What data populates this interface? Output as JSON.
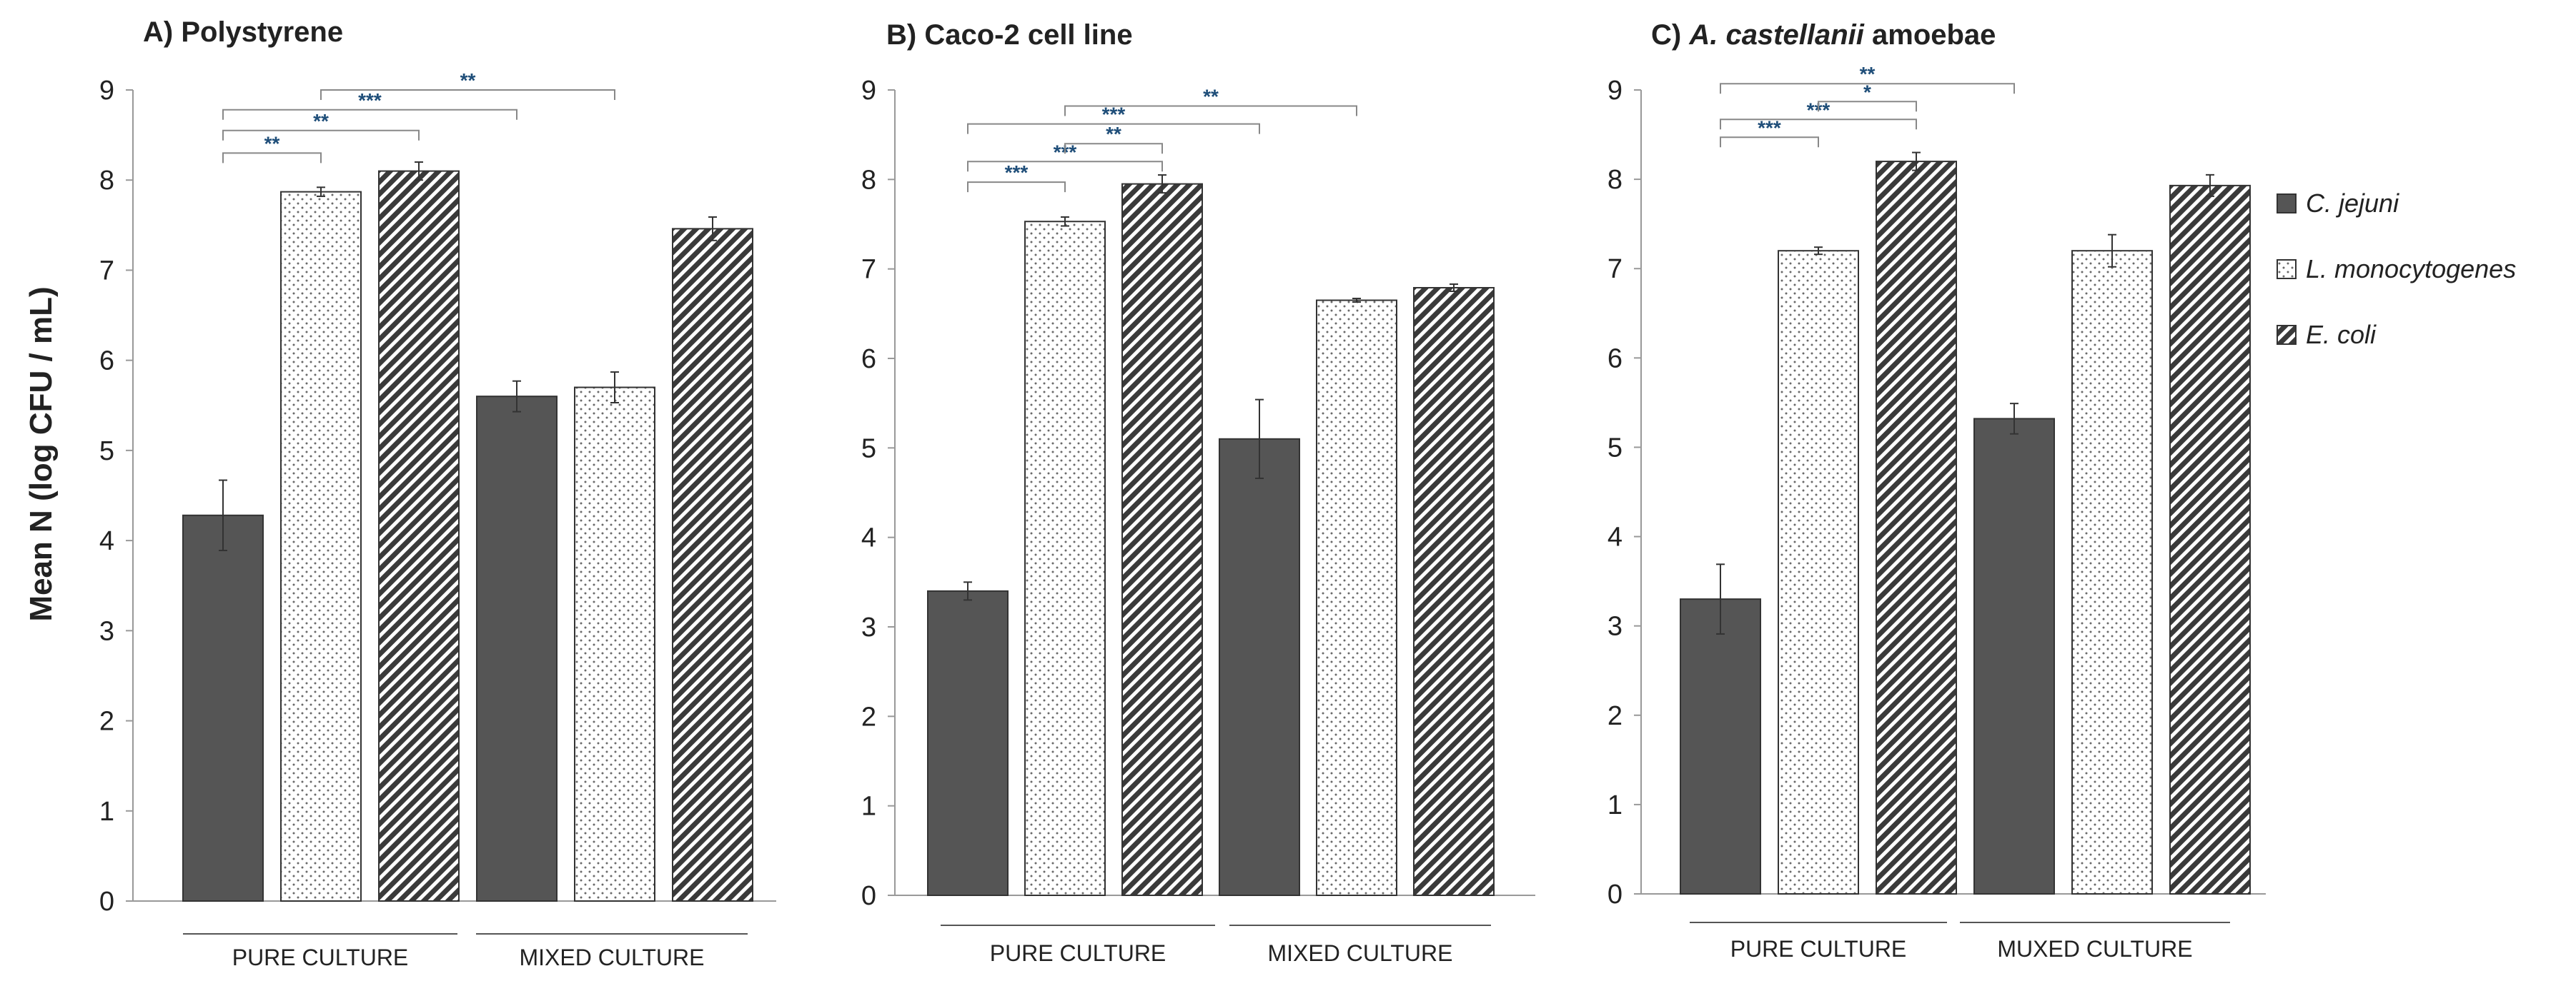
{
  "figure": {
    "ylabel": "Mean N (log CFU / mL)"
  },
  "legend": {
    "items": [
      {
        "label": "C. jejuni",
        "pattern": "solid"
      },
      {
        "label": "L. monocytogenes",
        "pattern": "dots"
      },
      {
        "label": "E. coli",
        "pattern": "hatch"
      }
    ]
  },
  "colors": {
    "solid": "#555555",
    "axis": "#999999",
    "bracket": "#888888",
    "star": "#1f4e79",
    "text": "#222222"
  },
  "chart_data": [
    {
      "type": "bar",
      "title_prefix": "A) ",
      "title_main": "Polystyrene",
      "title_suffix": "",
      "ylim": [
        0,
        9
      ],
      "yticks": [
        0,
        1,
        2,
        3,
        4,
        5,
        6,
        7,
        8,
        9
      ],
      "groups": [
        "PURE CULTURE",
        "MIXED CULTURE"
      ],
      "series": [
        {
          "name": "C. jejuni",
          "values": [
            4.28,
            5.6
          ],
          "errors": [
            0.39,
            0.17
          ]
        },
        {
          "name": "L. monocytogenes",
          "values": [
            7.87,
            5.7
          ],
          "errors": [
            0.05,
            0.17
          ]
        },
        {
          "name": "E. coli",
          "values": [
            8.1,
            7.46
          ],
          "errors": [
            0.1,
            0.13
          ]
        }
      ],
      "significance": [
        {
          "from": 0,
          "to": 1,
          "level": 8.3,
          "label": "**"
        },
        {
          "from": 0,
          "to": 2,
          "level": 8.55,
          "label": "**"
        },
        {
          "from": 0,
          "to": 3,
          "level": 8.78,
          "label": "***"
        },
        {
          "from": 1,
          "to": 4,
          "level": 9.0,
          "label": "**"
        }
      ]
    },
    {
      "type": "bar",
      "title_prefix": "B) ",
      "title_main": "Caco-2 cell line",
      "title_suffix": "",
      "ylim": [
        0,
        9
      ],
      "yticks": [
        0,
        1,
        2,
        3,
        4,
        5,
        6,
        7,
        8,
        9
      ],
      "groups": [
        "PURE CULTURE",
        "MIXED CULTURE"
      ],
      "series": [
        {
          "name": "C. jejuni",
          "values": [
            3.4,
            5.1
          ],
          "errors": [
            0.1,
            0.44
          ]
        },
        {
          "name": "L. monocytogenes",
          "values": [
            7.53,
            6.65
          ],
          "errors": [
            0.05,
            0.02
          ]
        },
        {
          "name": "E. coli",
          "values": [
            7.95,
            6.79
          ],
          "errors": [
            0.1,
            0.04
          ]
        }
      ],
      "significance": [
        {
          "from": 0,
          "to": 1,
          "level": 7.97,
          "label": "***"
        },
        {
          "from": 0,
          "to": 2,
          "level": 8.2,
          "label": "***"
        },
        {
          "from": 1,
          "to": 2,
          "level": 8.4,
          "label": "**"
        },
        {
          "from": 0,
          "to": 3,
          "level": 8.62,
          "label": "***"
        },
        {
          "from": 1,
          "to": 4,
          "level": 8.82,
          "label": "**"
        }
      ]
    },
    {
      "type": "bar",
      "title_prefix": "C) ",
      "title_main": "A. castellanii",
      "title_suffix": " amoebae",
      "ylim": [
        0,
        9
      ],
      "yticks": [
        0,
        1,
        2,
        3,
        4,
        5,
        6,
        7,
        8,
        9
      ],
      "groups": [
        "PURE CULTURE",
        "MUXED CULTURE"
      ],
      "series": [
        {
          "name": "C. jejuni",
          "values": [
            3.3,
            5.32
          ],
          "errors": [
            0.39,
            0.17
          ]
        },
        {
          "name": "L. monocytogenes",
          "values": [
            7.2,
            7.2
          ],
          "errors": [
            0.04,
            0.18
          ]
        },
        {
          "name": "E. coli",
          "values": [
            8.2,
            7.93
          ],
          "errors": [
            0.1,
            0.12
          ]
        }
      ],
      "significance": [
        {
          "from": 0,
          "to": 1,
          "level": 8.47,
          "label": "***"
        },
        {
          "from": 0,
          "to": 2,
          "level": 8.67,
          "label": "***"
        },
        {
          "from": 1,
          "to": 2,
          "level": 8.87,
          "label": "*"
        },
        {
          "from": 0,
          "to": 3,
          "level": 9.07,
          "label": "**"
        }
      ]
    }
  ]
}
